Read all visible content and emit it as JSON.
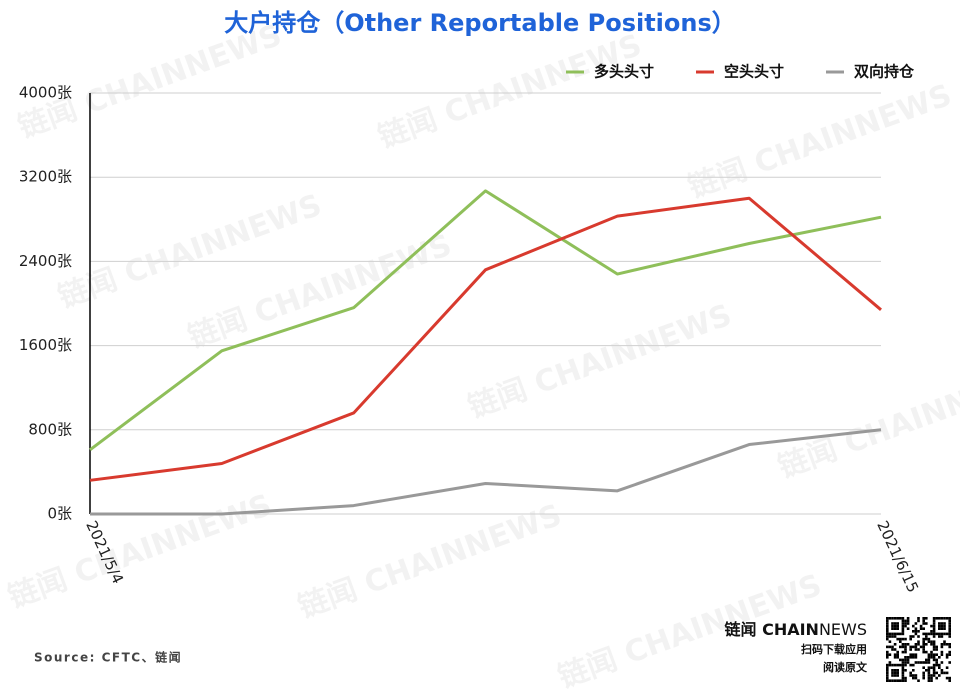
{
  "chart_data": {
    "type": "line",
    "title": "大户持仓（Other Reportable Positions）",
    "categories": [
      "2021/5/4",
      null,
      null,
      null,
      null,
      null,
      "2021/6/15"
    ],
    "series": [
      {
        "name": "多头头寸",
        "color": "#8fbf5a",
        "values": [
          610,
          1550,
          1960,
          3070,
          2280,
          2570,
          2820
        ]
      },
      {
        "name": "空头头寸",
        "color": "#d83a2e",
        "values": [
          320,
          480,
          960,
          2320,
          2830,
          3000,
          1940
        ]
      },
      {
        "name": "双向持仓",
        "color": "#999999",
        "values": [
          0,
          0,
          80,
          290,
          220,
          660,
          800
        ]
      }
    ],
    "ylim": [
      0,
      4000
    ],
    "yticks": [
      {
        "value": 0,
        "label": "0张"
      },
      {
        "value": 800,
        "label": "800张"
      },
      {
        "value": 1600,
        "label": "1600张"
      },
      {
        "value": 2400,
        "label": "2400张"
      },
      {
        "value": 3200,
        "label": "3200张"
      },
      {
        "value": 4000,
        "label": "4000张"
      }
    ],
    "grid": true,
    "legend": "top-right",
    "source": "Source: CFTC、链闻",
    "watermark": "链闻 CHAINNEWS",
    "brand": [
      "链闻 CHAIN",
      "NEWS"
    ],
    "brand_lines": [
      "扫码下载应用",
      "阅读原文"
    ]
  }
}
